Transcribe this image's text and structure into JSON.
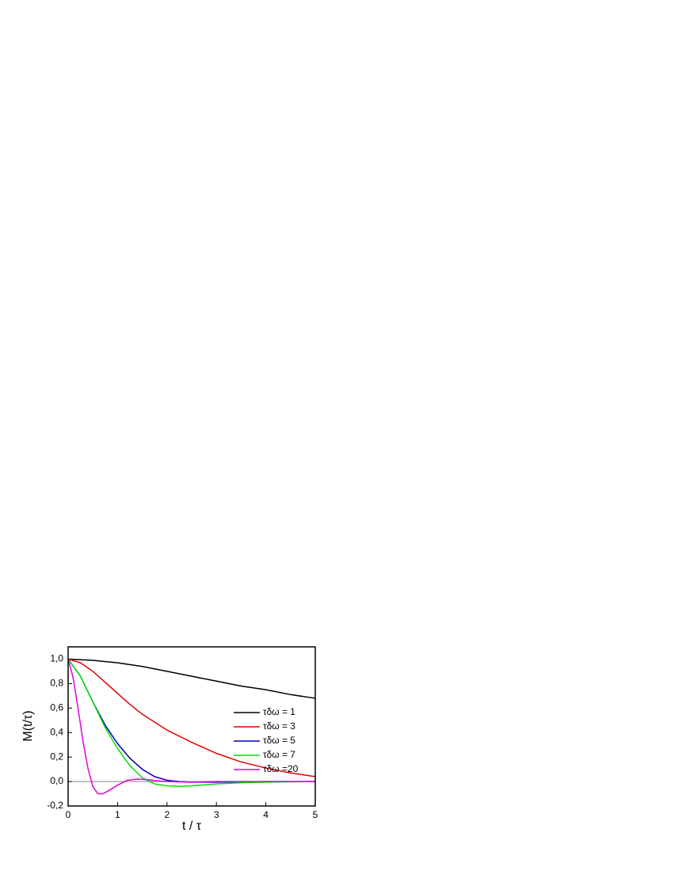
{
  "chart_data": {
    "type": "line",
    "xlabel": "t / τ",
    "ylabel": "M(t/τ)",
    "xlim": [
      0,
      5
    ],
    "ylim": [
      -0.2,
      1.1
    ],
    "xticks": [
      0,
      1,
      2,
      3,
      4,
      5
    ],
    "yticks": [
      {
        "value": -0.2,
        "label": "-0,2"
      },
      {
        "value": 0,
        "label": "0,0"
      },
      {
        "value": 0.2,
        "label": "0,2"
      },
      {
        "value": 0.4,
        "label": "0,4"
      },
      {
        "value": 0.6,
        "label": "0,6"
      },
      {
        "value": 0.8,
        "label": "0,8"
      },
      {
        "value": 1.0,
        "label": "1,0"
      }
    ],
    "zero_line": true,
    "legend": "right",
    "series": [
      {
        "name": "τδω = 1",
        "color": "#000000",
        "x": [
          0,
          0.5,
          1,
          1.5,
          2,
          2.5,
          3,
          3.5,
          4,
          4.5,
          5
        ],
        "values": [
          1.0,
          0.99,
          0.97,
          0.94,
          0.9,
          0.86,
          0.82,
          0.78,
          0.75,
          0.71,
          0.68
        ]
      },
      {
        "name": "τδω = 3",
        "color": "#e00000",
        "x": [
          0,
          0.25,
          0.5,
          0.75,
          1,
          1.25,
          1.5,
          2,
          2.5,
          3,
          3.5,
          4,
          4.5,
          5
        ],
        "values": [
          1.0,
          0.97,
          0.9,
          0.81,
          0.72,
          0.63,
          0.55,
          0.42,
          0.32,
          0.23,
          0.16,
          0.11,
          0.07,
          0.04
        ]
      },
      {
        "name": "τδω = 5",
        "color": "#0000c0",
        "x": [
          0,
          0.25,
          0.5,
          0.75,
          1,
          1.25,
          1.5,
          1.75,
          2,
          2.25,
          2.5,
          3,
          4,
          5
        ],
        "values": [
          1.0,
          0.86,
          0.65,
          0.46,
          0.31,
          0.19,
          0.1,
          0.04,
          0.01,
          0.0,
          -0.005,
          -0.005,
          0.0,
          0.0
        ]
      },
      {
        "name": "τδω = 7",
        "color": "#00e000",
        "x": [
          0,
          0.25,
          0.5,
          0.75,
          1,
          1.25,
          1.5,
          1.75,
          2,
          2.25,
          2.5,
          3,
          3.5,
          4,
          5
        ],
        "values": [
          1.0,
          0.86,
          0.65,
          0.44,
          0.27,
          0.13,
          0.03,
          -0.02,
          -0.035,
          -0.04,
          -0.035,
          -0.02,
          -0.01,
          -0.005,
          0.0
        ]
      },
      {
        "name": "τδω =20",
        "color": "#e000e0",
        "x": [
          0,
          0.1,
          0.2,
          0.3,
          0.4,
          0.5,
          0.6,
          0.7,
          0.8,
          1.0,
          1.2,
          1.4,
          1.6,
          1.8,
          2,
          2.5,
          3,
          5
        ],
        "values": [
          1.0,
          0.85,
          0.6,
          0.33,
          0.11,
          -0.04,
          -0.1,
          -0.1,
          -0.08,
          -0.03,
          0.01,
          0.02,
          0.015,
          0.005,
          0.0,
          -0.005,
          0.0,
          0.0
        ]
      }
    ]
  }
}
